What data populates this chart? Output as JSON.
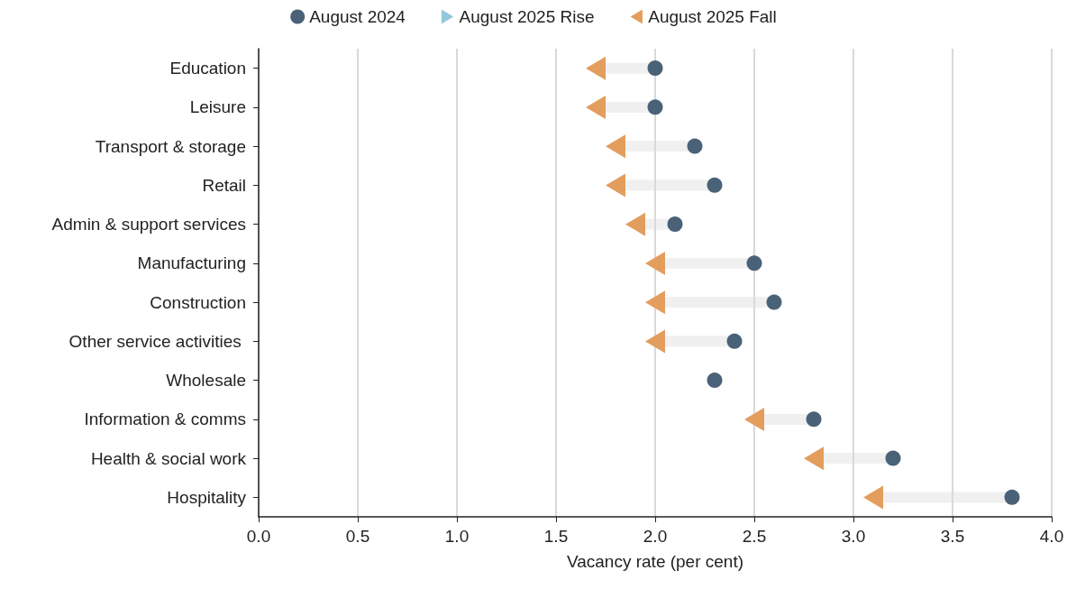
{
  "chart_data": {
    "type": "scatter",
    "orientation": "horizontal",
    "xlabel": "Vacancy rate (per cent)",
    "categories": [
      "Education",
      "Leisure",
      "Transport & storage",
      "Retail",
      "Admin & support services",
      "Manufacturing",
      "Construction",
      "Other service activities ",
      "Wholesale",
      "Information & comms",
      "Health & social work",
      "Hospitality"
    ],
    "series": [
      {
        "name": "August 2024",
        "color": "#4a6278",
        "marker": "circle",
        "values": [
          2.0,
          2.0,
          2.2,
          2.3,
          2.1,
          2.5,
          2.6,
          2.4,
          2.3,
          2.8,
          3.2,
          3.8
        ]
      },
      {
        "name": "August 2025 Rise",
        "color": "#92c8da",
        "marker": "triangle-right",
        "values": [
          null,
          null,
          null,
          null,
          null,
          null,
          null,
          null,
          null,
          null,
          null,
          null
        ]
      },
      {
        "name": "August 2025 Fall",
        "color": "#e39d5d",
        "marker": "triangle-left",
        "values": [
          1.7,
          1.7,
          1.8,
          1.8,
          1.9,
          2.0,
          2.0,
          2.0,
          null,
          2.5,
          2.8,
          3.1
        ]
      }
    ],
    "xlim": [
      0,
      4
    ],
    "xticks": [
      {
        "value": 0,
        "label": "0.0"
      },
      0.5,
      {
        "value": 1,
        "label": "1.0"
      },
      1.5,
      {
        "value": 2,
        "label": "2.0"
      },
      2.5,
      {
        "value": 3,
        "label": "3.0"
      },
      3.5,
      {
        "value": 4,
        "label": "4.0"
      }
    ],
    "grid": "x",
    "legend": "top"
  }
}
